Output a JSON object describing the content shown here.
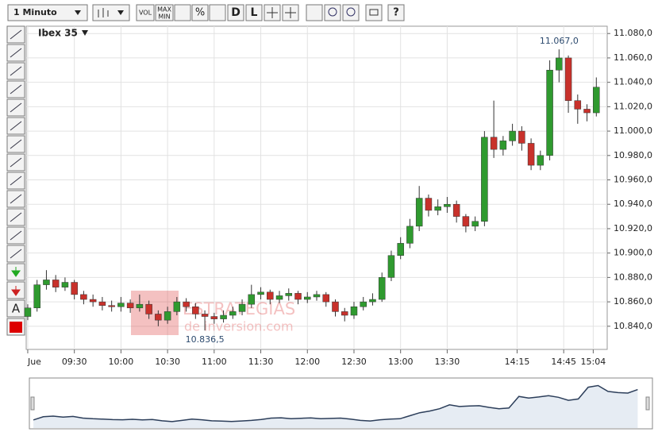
{
  "toolbar": {
    "interval": "1 Minuto",
    "buttons": [
      "VOL",
      "MAX",
      "MIN",
      "%",
      "D",
      "L",
      "?"
    ],
    "side_text": "A"
  },
  "watermark": {
    "line1": "ESTRATEGIAS",
    "line2": "de inversion.com"
  },
  "chart_data": {
    "type": "candlestick",
    "title": "Ibex 35",
    "x": [
      0,
      6,
      12,
      18,
      24,
      30,
      36,
      42,
      48,
      54,
      60,
      66,
      72,
      78,
      84,
      90,
      96,
      102,
      108,
      114,
      120,
      126,
      132,
      138,
      144,
      150,
      156,
      162,
      168,
      174,
      180,
      186,
      192,
      198,
      204,
      210,
      216,
      222,
      228,
      234,
      240,
      246,
      252,
      258,
      264,
      270,
      276,
      282,
      288,
      294,
      300,
      306,
      312,
      318,
      324,
      330,
      336,
      342,
      348,
      354,
      360,
      366
    ],
    "open": [
      10848,
      10855,
      10874,
      10878,
      10872,
      10876,
      10866,
      10862,
      10860,
      10857,
      10856,
      10859,
      10855,
      10858,
      10850,
      10845,
      10852,
      10860,
      10856,
      10850,
      10848,
      10846,
      10849,
      10852,
      10858,
      10866,
      10868,
      10862,
      10865,
      10867,
      10862,
      10864,
      10866,
      10860,
      10852,
      10849,
      10856,
      10860,
      10862,
      10880,
      10898,
      10908,
      10922,
      10945,
      10935,
      10938,
      10940,
      10930,
      10922,
      10926,
      10995,
      10985,
      10992,
      11000,
      10990,
      10972,
      10980,
      11050,
      11060,
      11025,
      11018,
      11015
    ],
    "high": [
      10858,
      10878,
      10886,
      10882,
      10880,
      10878,
      10869,
      10866,
      10864,
      10861,
      10864,
      10862,
      10866,
      10861,
      10853,
      10856,
      10864,
      10863,
      10859,
      10853,
      10851,
      10853,
      10856,
      10862,
      10874,
      10872,
      10870,
      10869,
      10871,
      10869,
      10868,
      10869,
      10868,
      10862,
      10855,
      10860,
      10864,
      10867,
      10884,
      10902,
      10913,
      10928,
      10955,
      10948,
      10944,
      10946,
      10943,
      10932,
      10930,
      11000,
      11025,
      10996,
      11006,
      11004,
      10994,
      10984,
      11058,
      11067,
      11062,
      11030,
      11022,
      11044
    ],
    "low": [
      10845,
      10852,
      10870,
      10868,
      10869,
      10862,
      10858,
      10856,
      10853,
      10852,
      10852,
      10851,
      10852,
      10846,
      10840,
      10842,
      10849,
      10852,
      10846,
      10836.5,
      10842,
      10843,
      10846,
      10849,
      10855,
      10862,
      10858,
      10859,
      10861,
      10858,
      10859,
      10861,
      10856,
      10848,
      10844,
      10846,
      10853,
      10857,
      10860,
      10877,
      10895,
      10904,
      10918,
      10930,
      10931,
      10933,
      10925,
      10917,
      10918,
      10922,
      10978,
      10980,
      10988,
      10984,
      10968,
      10968,
      10976,
      11040,
      11015,
      11006,
      11008,
      11012
    ],
    "close": [
      10855,
      10874,
      10878,
      10872,
      10876,
      10866,
      10862,
      10860,
      10857,
      10856,
      10859,
      10855,
      10858,
      10850,
      10845,
      10852,
      10860,
      10856,
      10850,
      10848,
      10846,
      10849,
      10852,
      10858,
      10866,
      10868,
      10862,
      10865,
      10867,
      10862,
      10864,
      10866,
      10860,
      10852,
      10849,
      10856,
      10860,
      10862,
      10880,
      10898,
      10908,
      10922,
      10945,
      10935,
      10938,
      10940,
      10930,
      10922,
      10926,
      10995,
      10985,
      10992,
      11000,
      10990,
      10972,
      10980,
      11050,
      11060,
      11025,
      11018,
      11015,
      11036
    ],
    "up_color": "#2f9a2f",
    "down_color": "#c8312b",
    "line_color": "#2c3e5a",
    "xlim": [
      -1,
      373
    ],
    "ylim": [
      10821,
      11086
    ],
    "xticks": [
      {
        "value": 0,
        "label": "Jue"
      },
      {
        "value": 30,
        "label": "09:30"
      },
      {
        "value": 60,
        "label": "10:00"
      },
      {
        "value": 90,
        "label": "10:30"
      },
      {
        "value": 120,
        "label": "11:00"
      },
      {
        "value": 150,
        "label": "11:30"
      },
      {
        "value": 180,
        "label": "12:00"
      },
      {
        "value": 210,
        "label": "12:30"
      },
      {
        "value": 240,
        "label": "13:00"
      },
      {
        "value": 270,
        "label": "13:30"
      },
      {
        "value": 315,
        "label": "14:15"
      },
      {
        "value": 345,
        "label": "14:45"
      },
      {
        "value": 364,
        "label": "15:04"
      }
    ],
    "yticks": [
      {
        "value": 10840,
        "label": "10.840,0"
      },
      {
        "value": 10860,
        "label": "10.860,0"
      },
      {
        "value": 10880,
        "label": "10.880,0"
      },
      {
        "value": 10900,
        "label": "10.900,0"
      },
      {
        "value": 10920,
        "label": "10.920,0"
      },
      {
        "value": 10940,
        "label": "10.940,0"
      },
      {
        "value": 10960,
        "label": "10.960,0"
      },
      {
        "value": 10980,
        "label": "10.980,0"
      },
      {
        "value": 11000,
        "label": "11.000,0"
      },
      {
        "value": 11020,
        "label": "11.020,0"
      },
      {
        "value": 11040,
        "label": "11.040,0"
      },
      {
        "value": 11060,
        "label": "11.060,0"
      },
      {
        "value": 11080,
        "label": "11.080,0"
      }
    ],
    "grid": true,
    "annotations": [
      {
        "text": "11.067,0",
        "x": 342,
        "y": 11067
      },
      {
        "text": "10.836,5",
        "x": 114,
        "y": 10836.5
      }
    ]
  }
}
